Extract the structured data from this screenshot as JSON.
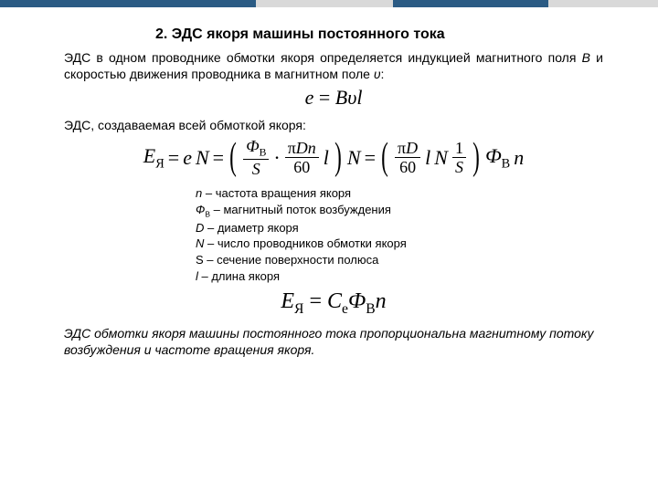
{
  "heading": "2.  ЭДС якоря машины постоянного тока",
  "para1_pre": "ЭДС в одном проводнике обмотки якоря определяется индукцией магнитного поля ",
  "para1_B": "В",
  "para1_mid": " и скоростью движения проводника в магнитном поле ",
  "para1_v": "υ",
  "para1_post": ":",
  "formula1": {
    "e": "e",
    "eq": " = ",
    "B": "B",
    "v": "υ",
    "l": "l"
  },
  "para2": "ЭДС, создаваемая всей обмоткой якоря:",
  "formula2": {
    "E": "E",
    "subYa": "Я",
    "eq": " = ",
    "e": "e",
    "N": "N",
    "Phi": "Ф",
    "subB": "В",
    "S": "S",
    "pi": "π",
    "D": "D",
    "n": "n",
    "sixty": "60",
    "l": "l",
    "one": "1"
  },
  "defs": {
    "r1a": "n",
    "r1b": " – частота вращения якоря",
    "r2a": "Ф",
    "r2sub": "В",
    "r2b": " – магнитный поток возбуждения",
    "r3a": "D",
    "r3b": " – диаметр якоря",
    "r4a": "N",
    "r4b": " – число проводников обмотки якоря",
    "r5a": "S",
    "r5b": " – сечение поверхности полюса",
    "r6a": "l",
    "r6b": " – длина якоря"
  },
  "formula3": {
    "E": "E",
    "subYa": "Я",
    "eq": " = ",
    "C": "C",
    "subE": "e",
    "Phi": "Ф",
    "subB": "В",
    "n": "n"
  },
  "concl": "ЭДС обмотки якоря машины постоянного тока пропорциональна магнитному потоку возбуждения и частоте вращения якоря."
}
